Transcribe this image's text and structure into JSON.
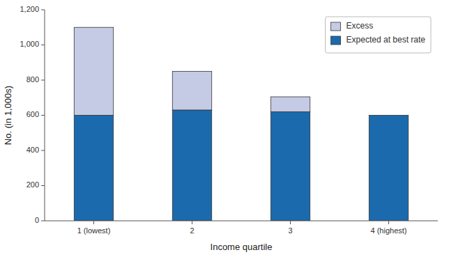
{
  "chart_data": {
    "type": "bar",
    "stacked": true,
    "categories": [
      "1 (lowest)",
      "2",
      "3",
      "4 (highest)"
    ],
    "series": [
      {
        "name": "Expected at best rate",
        "color": "#1a6aad",
        "values": [
          600,
          630,
          620,
          600
        ]
      },
      {
        "name": "Excess",
        "color": "#c5cae5",
        "values": [
          500,
          220,
          85,
          0
        ]
      }
    ],
    "xlabel": "Income quartile",
    "ylabel": "No. (in 1,000s)",
    "ylim": [
      0,
      1200
    ],
    "yticks": [
      0,
      200,
      400,
      600,
      800,
      {
        "value": 1000,
        "label": "1,000"
      },
      {
        "value": 1200,
        "label": "1,200"
      }
    ],
    "grid": false,
    "legend": "upper right"
  }
}
